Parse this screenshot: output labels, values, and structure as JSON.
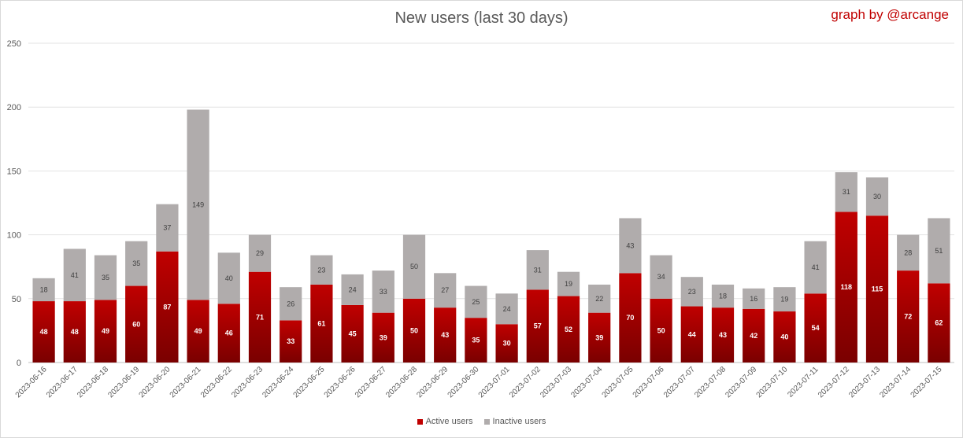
{
  "chart_data": {
    "type": "bar",
    "stacked": true,
    "title": "New users (last 30 days)",
    "credit": "graph by @arcange",
    "xlabel": "",
    "ylabel": "",
    "ylim": [
      0,
      250
    ],
    "yticks": [
      0,
      50,
      100,
      150,
      200,
      250
    ],
    "grid": true,
    "legend_position": "bottom",
    "categories": [
      "2023-06-16",
      "2023-06-17",
      "2023-06-18",
      "2023-06-19",
      "2023-06-20",
      "2023-06-21",
      "2023-06-22",
      "2023-06-23",
      "2023-06-24",
      "2023-06-25",
      "2023-06-26",
      "2023-06-27",
      "2023-06-28",
      "2023-06-29",
      "2023-06-30",
      "2023-07-01",
      "2023-07-02",
      "2023-07-03",
      "2023-07-04",
      "2023-07-05",
      "2023-07-06",
      "2023-07-07",
      "2023-07-08",
      "2023-07-09",
      "2023-07-10",
      "2023-07-11",
      "2023-07-12",
      "2023-07-13",
      "2023-07-14",
      "2023-07-15"
    ],
    "series": [
      {
        "name": "Active users",
        "color": "#c00000",
        "values": [
          48,
          48,
          49,
          60,
          87,
          49,
          46,
          71,
          33,
          61,
          45,
          39,
          50,
          43,
          35,
          30,
          57,
          52,
          39,
          70,
          50,
          44,
          43,
          42,
          40,
          54,
          118,
          115,
          72,
          62
        ]
      },
      {
        "name": "Inactive users",
        "color": "#b0acac",
        "values": [
          18,
          41,
          35,
          35,
          37,
          149,
          40,
          29,
          26,
          23,
          24,
          33,
          50,
          27,
          25,
          24,
          31,
          19,
          22,
          43,
          34,
          23,
          18,
          16,
          19,
          41,
          31,
          30,
          28,
          51
        ]
      }
    ]
  }
}
